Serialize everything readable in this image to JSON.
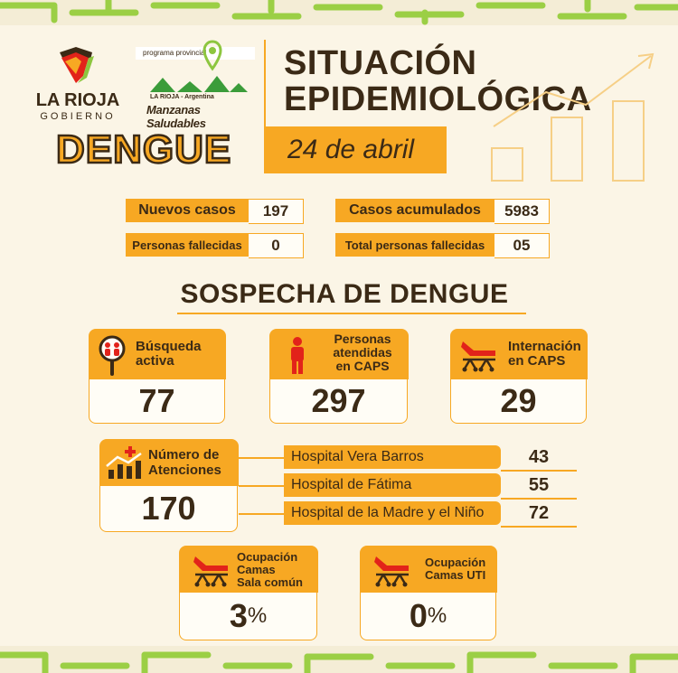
{
  "header": {
    "brand_name": "LA RIOJA",
    "brand_sub": "GOBIERNO",
    "program_tag": "programa provincial",
    "program_logo_text": "LA RIOJA - Argentina",
    "program_name": "Manzanas Saludables",
    "disease": "DENGUE",
    "title_line1": "SITUACIÓN",
    "title_line2": "EPIDEMIOLÓGICA",
    "date": "24 de abril"
  },
  "stats": {
    "new_cases_label": "Nuevos casos",
    "new_cases_value": "197",
    "accumulated_label": "Casos acumulados",
    "accumulated_value": "5983",
    "deaths_label": "Personas fallecidas",
    "deaths_value": "0",
    "total_deaths_label": "Total personas fallecidas",
    "total_deaths_value": "05"
  },
  "section_title": "SOSPECHA DE DENGUE",
  "cards": {
    "busqueda": {
      "label_line1": "Búsqueda",
      "label_line2": "activa",
      "value": "77",
      "icon": "people-search-icon"
    },
    "personas": {
      "label_line1": "Personas",
      "label_line2": "atendidas",
      "label_line3": "en CAPS",
      "value": "297",
      "icon": "person-icon"
    },
    "internacion": {
      "label_line1": "Internación",
      "label_line2": "en CAPS",
      "value": "29",
      "icon": "stretcher-icon"
    },
    "atenciones": {
      "label_line1": "Número de",
      "label_line2": "Atenciones",
      "value": "170",
      "icon": "chart-cross-icon"
    },
    "sala_comun": {
      "label_line1": "Ocupación",
      "label_line2": "Camas",
      "label_line3": "Sala común",
      "value": "3",
      "unit": "%",
      "icon": "stretcher-icon"
    },
    "uti": {
      "label_line1": "Ocupación",
      "label_line2": "Camas UTI",
      "value": "0",
      "unit": "%",
      "icon": "stretcher-icon"
    }
  },
  "hospitals": [
    {
      "name": "Hospital Vera Barros",
      "value": "43"
    },
    {
      "name": "Hospital de Fátima",
      "value": "55"
    },
    {
      "name": "Hospital de la Madre y el Niño",
      "value": "72"
    }
  ],
  "colors": {
    "accent": "#f7a823",
    "text": "#3b2a16",
    "background": "#fbf5e6",
    "brand_green": "#8dc63f",
    "brand_red": "#e2231a"
  }
}
